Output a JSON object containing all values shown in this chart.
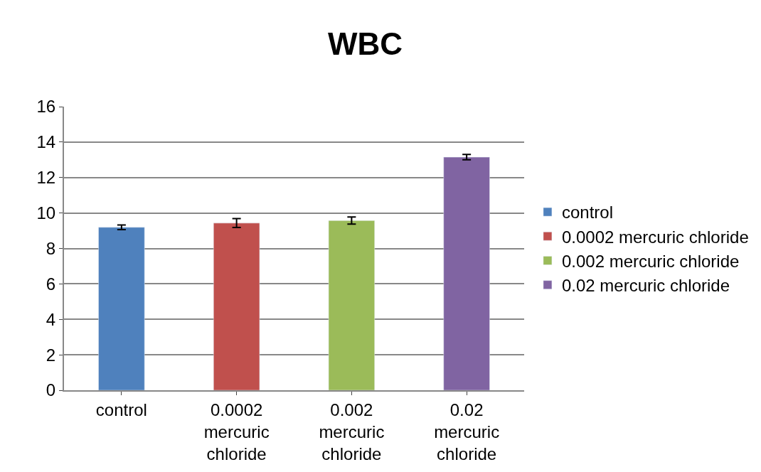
{
  "chart_data": {
    "type": "bar",
    "title": "WBC",
    "categories": [
      "control",
      "0.0002 mercuric chloride",
      "0.002 mercuric chloride",
      "0.02 mercuric chloride"
    ],
    "series": [
      {
        "name": "control",
        "color": "#4f81bd",
        "values": [
          9.19,
          null,
          null,
          null
        ],
        "errors": [
          0.13,
          null,
          null,
          null
        ]
      },
      {
        "name": "0.0002 mercuric chloride",
        "color": "#c0504d",
        "values": [
          null,
          9.43,
          null,
          null
        ],
        "errors": [
          null,
          0.25,
          null,
          null
        ]
      },
      {
        "name": "0.002 mercuric chloride",
        "color": "#9bbb59",
        "values": [
          null,
          null,
          9.57,
          null
        ],
        "errors": [
          null,
          null,
          0.2,
          null
        ]
      },
      {
        "name": "0.02 mercuric chloride",
        "color": "#8064a2",
        "values": [
          null,
          null,
          null,
          13.15
        ],
        "errors": [
          null,
          null,
          null,
          0.15
        ]
      }
    ],
    "ylim": [
      0,
      16
    ],
    "yticks": [
      0,
      2,
      4,
      6,
      8,
      10,
      12,
      14,
      16
    ],
    "grid": "y",
    "legend": "right"
  }
}
